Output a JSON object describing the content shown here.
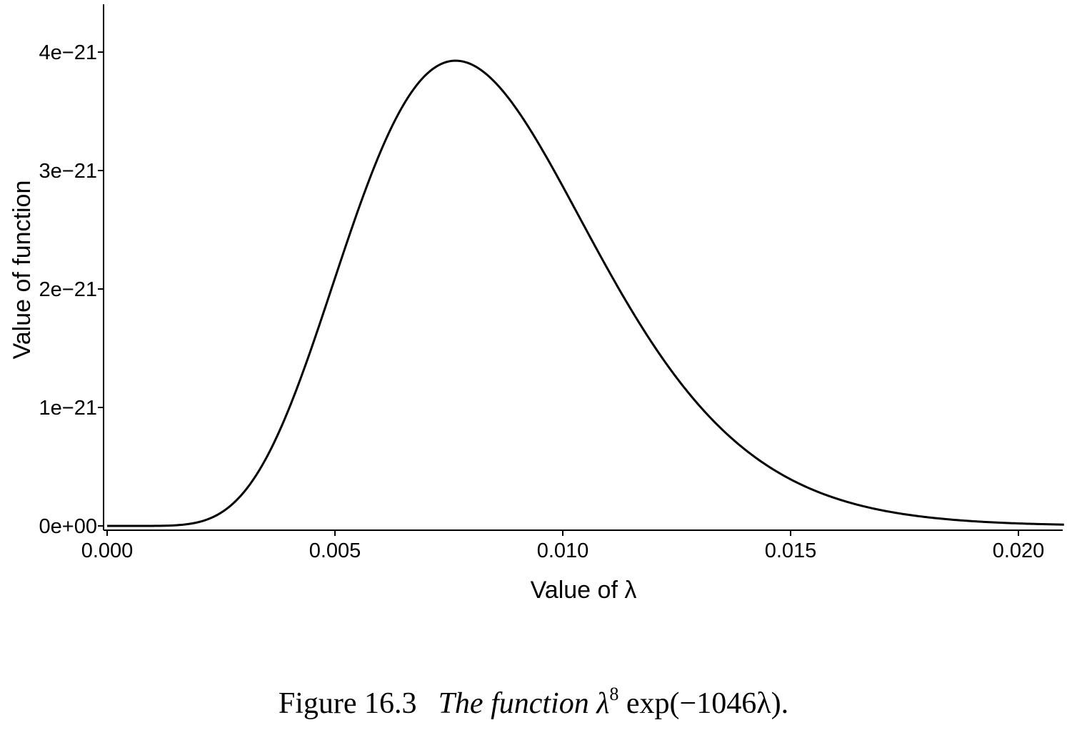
{
  "colors": {
    "line": "#000000",
    "axis": "#000000",
    "background": "#ffffff"
  },
  "chart_data": {
    "type": "line",
    "function": "lambda^8 * exp(-1046 * lambda)",
    "xlabel": "Value of λ",
    "ylabel": "Value of function",
    "xlim": [
      0.0,
      0.021
    ],
    "ylim": [
      0.0,
      4.4e-21
    ],
    "x_ticks": [
      0.0,
      0.005,
      0.01,
      0.015,
      0.02
    ],
    "x_tick_labels": [
      "0.000",
      "0.005",
      "0.010",
      "0.015",
      "0.020"
    ],
    "y_ticks": [
      0,
      1e-21,
      2e-21,
      3e-21,
      4e-21
    ],
    "y_tick_labels": [
      "0e+00",
      "1e−21",
      "2e−21",
      "3e−21",
      "4e−21"
    ],
    "grid": false,
    "legend": "none",
    "series": [
      {
        "x": [
          0.0,
          0.001,
          0.002,
          0.003,
          0.004,
          0.005,
          0.006,
          0.007,
          0.0076,
          0.008,
          0.009,
          0.01,
          0.011,
          0.012,
          0.013,
          0.014,
          0.015,
          0.016,
          0.017,
          0.018,
          0.019,
          0.02,
          0.021
        ],
        "y": [
          0.0,
          3.5e-26,
          3.1e-23,
          2.8e-22,
          1e-21,
          2.1e-21,
          3.2e-21,
          3.85e-21,
          3.92e-21,
          3.9e-21,
          3.4e-21,
          2.7e-21,
          1.9e-21,
          1.3e-21,
          8e-22,
          4.8e-22,
          2.8e-22,
          1.6e-22,
          8.9e-23,
          4.8e-23,
          2.5e-23,
          1.3e-23,
          6e-24
        ]
      }
    ]
  },
  "caption": {
    "prefix": "Figure 16.3",
    "text": "The function λ",
    "exponent": "8",
    "expr": "exp(−1046λ)."
  }
}
